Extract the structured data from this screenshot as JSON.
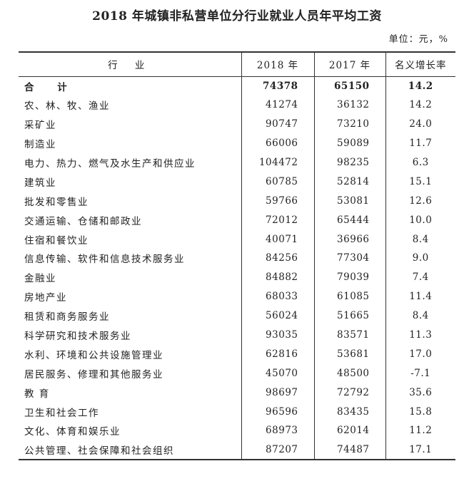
{
  "title": "2018 年城镇非私营单位分行业就业人员年平均工资",
  "unit": "单位：元，%",
  "table": {
    "headers": {
      "industry": "行 业",
      "y2018": "2018 年",
      "y2017": "2017 年",
      "growth": "名义增长率"
    },
    "rows": [
      {
        "industry": "合 计",
        "y2018": "74378",
        "y2017": "65150",
        "growth": "14.2"
      },
      {
        "industry": "农、林、牧、渔业",
        "y2018": "41274",
        "y2017": "36132",
        "growth": "14.2"
      },
      {
        "industry": "采矿业",
        "y2018": "90747",
        "y2017": "73210",
        "growth": "24.0"
      },
      {
        "industry": "制造业",
        "y2018": "66006",
        "y2017": "59089",
        "growth": "11.7"
      },
      {
        "industry": "电力、热力、燃气及水生产和供应业",
        "y2018": "104472",
        "y2017": "98235",
        "growth": "6.3"
      },
      {
        "industry": "建筑业",
        "y2018": "60785",
        "y2017": "52814",
        "growth": "15.1"
      },
      {
        "industry": "批发和零售业",
        "y2018": "59766",
        "y2017": "53081",
        "growth": "12.6"
      },
      {
        "industry": "交通运输、仓储和邮政业",
        "y2018": "72012",
        "y2017": "65444",
        "growth": "10.0"
      },
      {
        "industry": "住宿和餐饮业",
        "y2018": "40071",
        "y2017": "36966",
        "growth": "8.4"
      },
      {
        "industry": "信息传输、软件和信息技术服务业",
        "y2018": "84256",
        "y2017": "77304",
        "growth": "9.0"
      },
      {
        "industry": "金融业",
        "y2018": "84882",
        "y2017": "79039",
        "growth": "7.4"
      },
      {
        "industry": "房地产业",
        "y2018": "68033",
        "y2017": "61085",
        "growth": "11.4"
      },
      {
        "industry": "租赁和商务服务业",
        "y2018": "56024",
        "y2017": "51665",
        "growth": "8.4"
      },
      {
        "industry": "科学研究和技术服务业",
        "y2018": "93035",
        "y2017": "83571",
        "growth": "11.3"
      },
      {
        "industry": "水利、环境和公共设施管理业",
        "y2018": "62816",
        "y2017": "53681",
        "growth": "17.0"
      },
      {
        "industry": "居民服务、修理和其他服务业",
        "y2018": "45070",
        "y2017": "48500",
        "growth": "-7.1"
      },
      {
        "industry": "教 育",
        "y2018": "98697",
        "y2017": "72792",
        "growth": "35.6"
      },
      {
        "industry": "卫生和社会工作",
        "y2018": "96596",
        "y2017": "83435",
        "growth": "15.8"
      },
      {
        "industry": "文化、体育和娱乐业",
        "y2018": "68973",
        "y2017": "62014",
        "growth": "11.2"
      },
      {
        "industry": "公共管理、社会保障和社会组织",
        "y2018": "87207",
        "y2017": "74487",
        "growth": "17.1"
      }
    ]
  }
}
